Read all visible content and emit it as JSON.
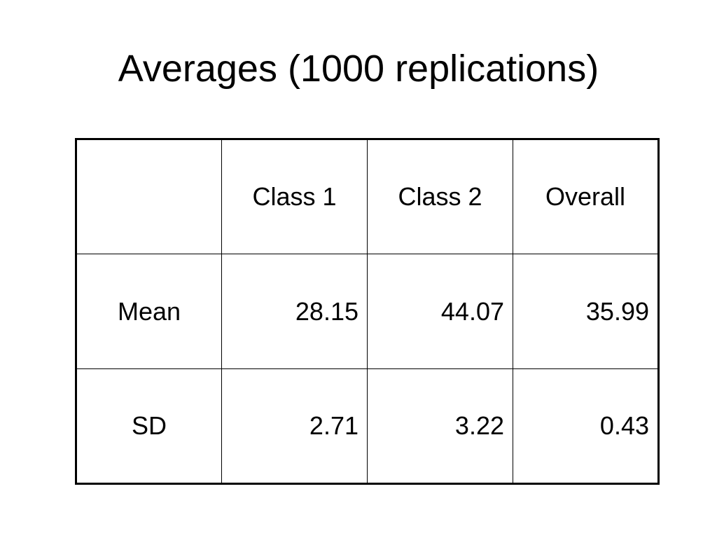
{
  "slide": {
    "title": "Averages (1000 replications)"
  },
  "table": {
    "headers": [
      "",
      "Class 1",
      "Class 2",
      "Overall"
    ],
    "rows": [
      {
        "label": "Mean",
        "values": [
          "28.15",
          "44.07",
          "35.99"
        ]
      },
      {
        "label": "SD",
        "values": [
          "2.71",
          "3.22",
          "0.43"
        ]
      }
    ]
  }
}
